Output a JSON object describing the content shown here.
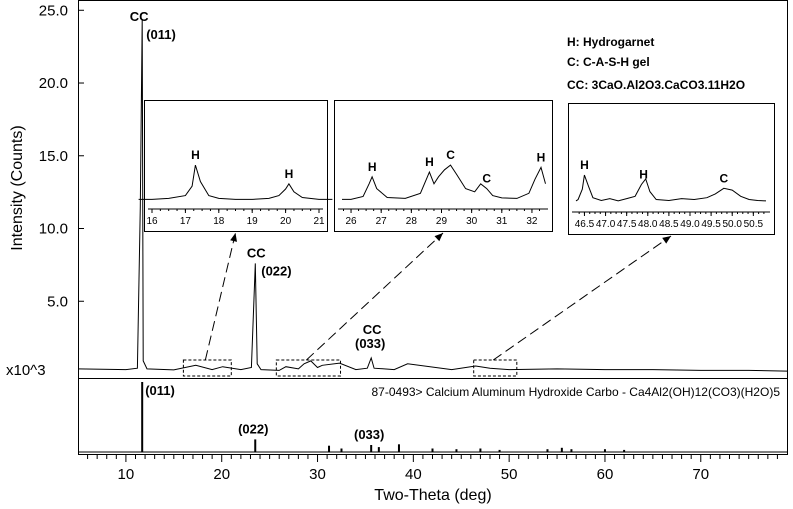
{
  "chart_data": {
    "type": "line",
    "title": "",
    "xlabel": "Two-Theta (deg)",
    "ylabel": "Intensity (Counts)",
    "y_multiplier_label": "x10^3",
    "xlim": [
      5,
      79
    ],
    "xticks": [
      10,
      20,
      30,
      40,
      50,
      60,
      70
    ],
    "ylim": [
      0,
      25.5
    ],
    "yticks": [
      "5.0",
      "10.0",
      "15.0",
      "20.0",
      "25.0"
    ],
    "legend": [
      "H: Hydrogarnet",
      "C: C-A-S-H gel",
      "CC: 3CaO.Al2O3.CaCO3.11H2O"
    ],
    "series": [
      {
        "x": [
          5,
          10,
          11.2,
          11.5,
          11.7,
          11.8,
          12.2,
          15,
          17.3,
          19,
          20.1,
          22,
          23.1,
          23.5,
          23.7,
          24.1,
          26,
          26.7,
          28,
          28.6,
          29.3,
          30,
          30.5,
          32.3,
          34,
          35.2,
          35.6,
          35.9,
          38,
          39.4,
          44,
          46.5,
          48,
          50,
          55,
          60,
          65,
          70,
          75,
          79
        ],
        "y": [
          0.35,
          0.3,
          0.4,
          11.5,
          24.4,
          0.9,
          0.35,
          0.28,
          0.6,
          0.3,
          0.5,
          0.3,
          0.45,
          7.6,
          0.7,
          0.3,
          0.25,
          0.5,
          0.35,
          0.7,
          0.9,
          0.45,
          0.6,
          0.75,
          0.3,
          0.4,
          1.1,
          0.4,
          0.3,
          0.7,
          0.3,
          0.55,
          0.4,
          0.3,
          0.35,
          0.3,
          0.3,
          0.25,
          0.25,
          0.2
        ]
      }
    ],
    "peak_labels": [
      {
        "x": 11.7,
        "y": 24.4,
        "label": "CC",
        "miller": "(011)"
      },
      {
        "x": 23.5,
        "y": 7.6,
        "label": "CC",
        "miller": "(022)"
      },
      {
        "x": 35.6,
        "y": 1.1,
        "label": "CC",
        "miller": "(033)"
      }
    ],
    "reference": {
      "label": "87-0493> Calcium Aluminum Hydroxide Carbo - Ca4Al2(OH)12(CO3)(H2O)5",
      "peaks": [
        {
          "x": 11.7,
          "h": 100,
          "label": "(011)"
        },
        {
          "x": 23.5,
          "h": 18,
          "label": "(022)"
        },
        {
          "x": 31.2,
          "h": 9
        },
        {
          "x": 32.5,
          "h": 5
        },
        {
          "x": 35.6,
          "h": 10,
          "label": "(033)"
        },
        {
          "x": 36.4,
          "h": 7
        },
        {
          "x": 38.5,
          "h": 11
        },
        {
          "x": 42,
          "h": 5
        },
        {
          "x": 44.5,
          "h": 4
        },
        {
          "x": 47,
          "h": 5
        },
        {
          "x": 49,
          "h": 3
        },
        {
          "x": 54,
          "h": 4
        },
        {
          "x": 55.5,
          "h": 6
        },
        {
          "x": 56.5,
          "h": 4
        },
        {
          "x": 60,
          "h": 4
        },
        {
          "x": 62,
          "h": 3
        }
      ]
    },
    "insets": [
      {
        "zoom_range": [
          16,
          21
        ],
        "xticks": [
          "16",
          "17",
          "18",
          "19",
          "20",
          "21"
        ],
        "labels": [
          {
            "x": 17.3,
            "label": "H"
          },
          {
            "x": 20.1,
            "label": "H"
          }
        ],
        "profile": {
          "x": [
            15.6,
            16,
            16.5,
            17,
            17.2,
            17.3,
            17.45,
            17.7,
            18,
            18.5,
            19,
            19.5,
            19.8,
            20,
            20.1,
            20.25,
            20.5,
            21,
            21.4
          ],
          "y": [
            0.12,
            0.12,
            0.14,
            0.2,
            0.4,
            0.85,
            0.5,
            0.2,
            0.14,
            0.12,
            0.12,
            0.14,
            0.2,
            0.34,
            0.45,
            0.28,
            0.16,
            0.12,
            0.12
          ]
        }
      },
      {
        "zoom_range": [
          25.7,
          32.4
        ],
        "xticks": [
          "26",
          "27",
          "28",
          "29",
          "30",
          "31",
          "32"
        ],
        "labels": [
          {
            "x": 26.7,
            "label": "H"
          },
          {
            "x": 28.6,
            "label": "H"
          },
          {
            "x": 29.3,
            "label": "C"
          },
          {
            "x": 30.5,
            "label": "C"
          },
          {
            "x": 32.3,
            "label": "H"
          }
        ],
        "profile": {
          "x": [
            25.7,
            26,
            26.4,
            26.6,
            26.7,
            26.85,
            27.2,
            27.8,
            28.3,
            28.5,
            28.6,
            28.75,
            28.9,
            29.1,
            29.3,
            29.5,
            29.8,
            30.1,
            30.3,
            30.5,
            30.7,
            31,
            31.5,
            31.9,
            32.1,
            32.3,
            32.45
          ],
          "y": [
            0.12,
            0.12,
            0.18,
            0.45,
            0.6,
            0.35,
            0.16,
            0.14,
            0.25,
            0.55,
            0.7,
            0.45,
            0.6,
            0.75,
            0.85,
            0.65,
            0.35,
            0.28,
            0.45,
            0.35,
            0.2,
            0.15,
            0.14,
            0.25,
            0.55,
            0.8,
            0.45
          ]
        }
      },
      {
        "zoom_range": [
          46.3,
          50.8
        ],
        "xticks": [
          "46.5",
          "47.0",
          "47.5",
          "48.0",
          "48.5",
          "49.0",
          "49.5",
          "50.0",
          "50.5"
        ],
        "labels": [
          {
            "x": 46.5,
            "label": "H"
          },
          {
            "x": 47.9,
            "label": "H"
          },
          {
            "x": 49.8,
            "label": "C"
          }
        ],
        "profile": {
          "x": [
            46.3,
            46.35,
            46.45,
            46.5,
            46.6,
            46.7,
            46.9,
            47.1,
            47.3,
            47.5,
            47.7,
            47.85,
            47.95,
            48.05,
            48.2,
            48.5,
            48.8,
            49.1,
            49.4,
            49.6,
            49.8,
            50,
            50.2,
            50.4,
            50.6,
            50.8
          ],
          "y": [
            0.15,
            0.18,
            0.4,
            0.7,
            0.45,
            0.22,
            0.16,
            0.2,
            0.15,
            0.2,
            0.25,
            0.5,
            0.62,
            0.35,
            0.18,
            0.16,
            0.2,
            0.18,
            0.22,
            0.3,
            0.42,
            0.38,
            0.25,
            0.18,
            0.16,
            0.15
          ]
        }
      }
    ]
  }
}
